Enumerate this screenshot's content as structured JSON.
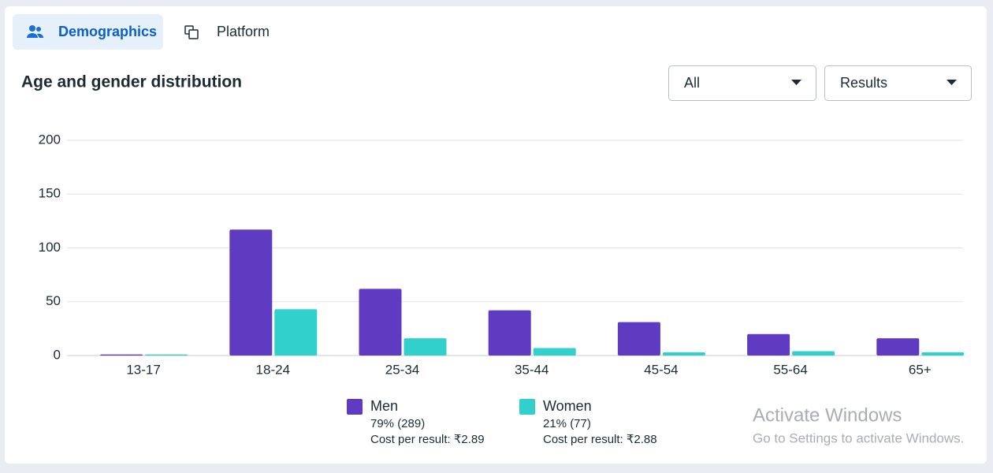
{
  "tabs": [
    {
      "label": "Demographics",
      "active": true
    },
    {
      "label": "Platform",
      "active": false
    }
  ],
  "dropdowns": [
    "All",
    "Results"
  ],
  "watermark": {
    "title": "Activate Windows",
    "subtitle": "Go to Settings to activate Windows."
  },
  "chart_data": {
    "type": "bar",
    "title": "Age and gender distribution",
    "categories": [
      "13-17",
      "18-24",
      "25-34",
      "35-44",
      "45-54",
      "55-64",
      "65+"
    ],
    "series": [
      {
        "name": "Men",
        "color": "#5e3bc0",
        "values": [
          1,
          117,
          62,
          42,
          31,
          20,
          16
        ],
        "share_label": "79% (289)",
        "cost_label": "Cost per result: ₹2.89"
      },
      {
        "name": "Women",
        "color": "#32d0cd",
        "values": [
          1,
          43,
          16,
          7,
          3,
          4,
          3
        ],
        "share_label": "21% (77)",
        "cost_label": "Cost per result: ₹2.88"
      }
    ],
    "ylim": [
      0,
      200
    ],
    "yticks": [
      0,
      50,
      100,
      150,
      200
    ],
    "grid": true
  }
}
